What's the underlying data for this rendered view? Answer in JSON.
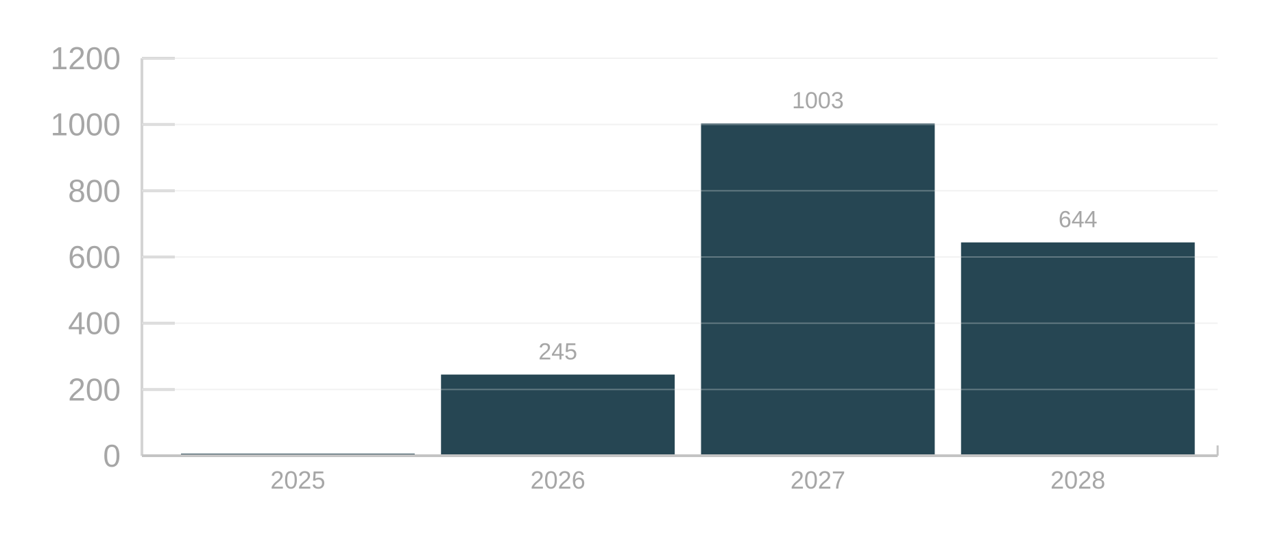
{
  "colors": {
    "bar": "#264653",
    "axis": "#d4d4d4",
    "grid": "#eeeeee",
    "text": "#a6a6a6"
  },
  "chart_data": {
    "type": "bar",
    "categories": [
      "2025",
      "2026",
      "2027",
      "2028"
    ],
    "values": [
      3,
      245,
      1003,
      644
    ],
    "data_labels": [
      "",
      "245",
      "1003",
      "644"
    ],
    "yticks": [
      0,
      200,
      400,
      600,
      800,
      1000,
      1200
    ],
    "ylim": [
      0,
      1200
    ],
    "grid": true,
    "legend": "none"
  }
}
